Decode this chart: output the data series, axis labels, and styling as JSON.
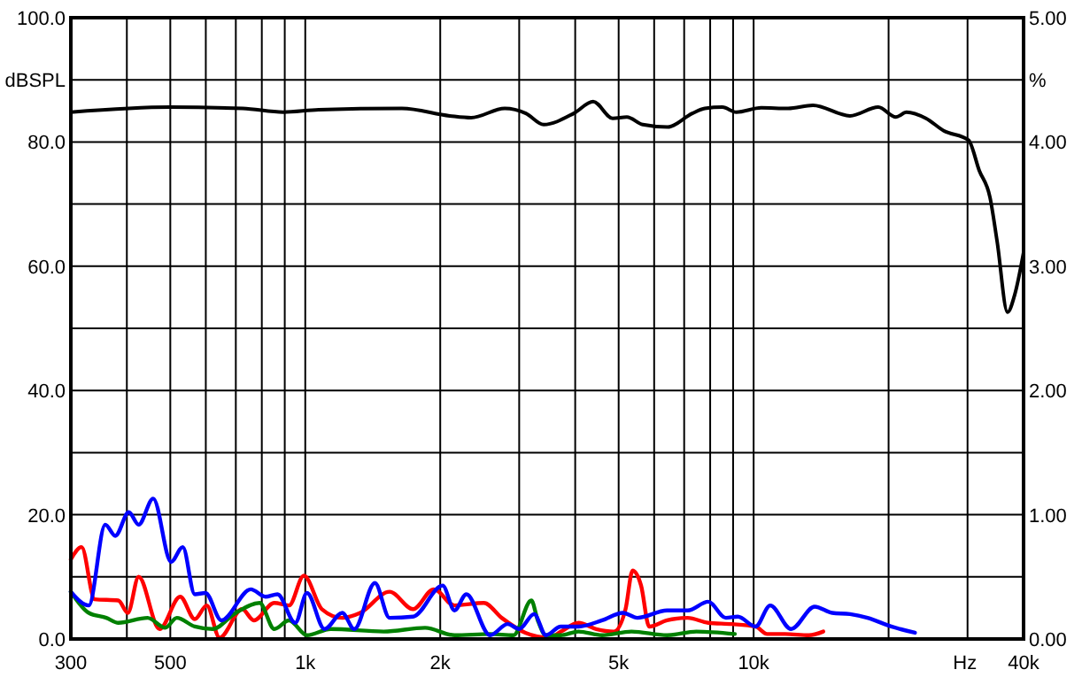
{
  "chart_data": {
    "type": "line",
    "ylabel": "dBSPL",
    "y2label": "%",
    "xlabel": "Hz",
    "log": "x",
    "grid": true,
    "marker": "none",
    "line_style": "solid",
    "xlim": [
      300,
      40000
    ],
    "xticks": [
      300,
      {
        "value": 400,
        "label": null
      },
      500,
      {
        "value": 600,
        "label": null
      },
      {
        "value": 700,
        "label": null
      },
      {
        "value": 800,
        "label": null
      },
      {
        "value": 900,
        "label": null
      },
      {
        "value": 1000,
        "label": "1k"
      },
      {
        "value": 2000,
        "label": "2k"
      },
      {
        "value": 3000,
        "label": null
      },
      {
        "value": 4000,
        "label": null
      },
      {
        "value": 5000,
        "label": "5k"
      },
      {
        "value": 6000,
        "label": null
      },
      {
        "value": 7000,
        "label": null
      },
      {
        "value": 8000,
        "label": null
      },
      {
        "value": 9000,
        "label": null
      },
      {
        "value": 10000,
        "label": "10k"
      },
      {
        "value": 20000,
        "label": null
      },
      {
        "value": 30000,
        "label": null
      },
      {
        "value": 40000,
        "label": "40k"
      }
    ],
    "ylim": [
      0,
      100
    ],
    "yticks": [
      {
        "value": 0,
        "label": "0.0"
      },
      {
        "value": 10,
        "label": null
      },
      {
        "value": 20,
        "label": "20.0"
      },
      {
        "value": 30,
        "label": null
      },
      {
        "value": 40,
        "label": "40.0"
      },
      {
        "value": 50,
        "label": null
      },
      {
        "value": 60,
        "label": "60.0"
      },
      {
        "value": 70,
        "label": null
      },
      {
        "value": 80,
        "label": "80.0"
      },
      {
        "value": 90,
        "label": null
      },
      {
        "value": 100,
        "label": "100.0"
      }
    ],
    "y2lim": [
      0,
      5
    ],
    "y2ticks": [
      {
        "value": 0,
        "label": "0.00"
      },
      {
        "value": 1,
        "label": "1.00"
      },
      {
        "value": 2,
        "label": "2.00"
      },
      {
        "value": 3,
        "label": "3.00"
      },
      {
        "value": 4,
        "label": "4.00"
      },
      {
        "value": 5,
        "label": "5.00"
      }
    ],
    "series": [
      {
        "color": "#000000",
        "x": [
          300,
          500,
          725,
          893,
          1071,
          1643,
          2100,
          2343,
          2785,
          3105,
          3402,
          3970,
          4387,
          4849,
          5214,
          5659,
          6427,
          7298,
          7782,
          8520,
          9150,
          10400,
          11940,
          13560,
          16400,
          18970,
          20770,
          21930,
          24230,
          26550,
          30150,
          31860,
          33660,
          34920,
          36840,
          38220,
          40000
        ],
        "values": [
          84.8,
          85.6,
          85.4,
          84.8,
          85.2,
          85.4,
          84.2,
          83.9,
          85.4,
          84.6,
          82.8,
          84.6,
          86.5,
          83.8,
          84.0,
          82.8,
          82.4,
          84.6,
          85.4,
          85.6,
          84.8,
          85.5,
          85.4,
          85.9,
          84.2,
          85.6,
          84.0,
          84.8,
          83.8,
          81.8,
          80.3,
          75.4,
          71.1,
          64.0,
          52.6,
          55.4,
          62.2
        ]
      },
      {
        "color": "#ff0000",
        "axis": "y2",
        "x": [
          300,
          317,
          339,
          383,
          402,
          425,
          473,
          526,
          567,
          603,
          644,
          723,
          768,
          853,
          920,
          993,
          1089,
          1209,
          1326,
          1542,
          1740,
          1935,
          2152,
          2502,
          2742,
          3096,
          3494,
          3720,
          4069,
          4456,
          4880,
          5180,
          5372,
          5610,
          5850,
          6411,
          7128,
          7920,
          8940,
          10100,
          10720,
          11750,
          13280,
          14300
        ],
        "values": [
          0.64,
          0.74,
          0.32,
          0.31,
          0.21,
          0.5,
          0.08,
          0.34,
          0.16,
          0.27,
          0.01,
          0.24,
          0.15,
          0.29,
          0.27,
          0.51,
          0.24,
          0.17,
          0.21,
          0.38,
          0.24,
          0.4,
          0.27,
          0.29,
          0.17,
          0.05,
          0.01,
          0.06,
          0.13,
          0.08,
          0.06,
          0.24,
          0.55,
          0.43,
          0.1,
          0.15,
          0.17,
          0.13,
          0.12,
          0.1,
          0.04,
          0.04,
          0.03,
          0.06
        ]
      },
      {
        "color": "#008000",
        "axis": "y2",
        "x": [
          300,
          329,
          360,
          383,
          445,
          487,
          517,
          567,
          621,
          700,
          791,
          853,
          920,
          1009,
          1139,
          1496,
          1850,
          2152,
          2583,
          2913,
          3193,
          3300,
          3441,
          3714,
          4069,
          4592,
          5340,
          6411,
          7450,
          9080
        ],
        "values": [
          0.38,
          0.21,
          0.17,
          0.13,
          0.17,
          0.09,
          0.17,
          0.1,
          0.08,
          0.21,
          0.29,
          0.08,
          0.15,
          0.03,
          0.08,
          0.06,
          0.09,
          0.03,
          0.04,
          0.03,
          0.31,
          0.15,
          0.03,
          0.03,
          0.06,
          0.03,
          0.06,
          0.03,
          0.06,
          0.04
        ]
      },
      {
        "color": "#0000ff",
        "axis": "y2",
        "x": [
          300,
          329,
          358,
          377,
          404,
          425,
          458,
          502,
          533,
          567,
          599,
          650,
          756,
          815,
          867,
          950,
          1009,
          1104,
          1209,
          1286,
          1430,
          1542,
          1740,
          2025,
          2152,
          2287,
          2583,
          2827,
          3000,
          3240,
          3441,
          3714,
          4069,
          4592,
          5110,
          5505,
          6411,
          7128,
          7920,
          8670,
          9220,
          10100,
          10890,
          12120,
          13680,
          14970,
          16410,
          17950,
          20280,
          22900
        ],
        "values": [
          0.38,
          0.27,
          0.92,
          0.83,
          1.02,
          0.92,
          1.13,
          0.62,
          0.74,
          0.36,
          0.37,
          0.15,
          0.4,
          0.34,
          0.36,
          0.13,
          0.37,
          0.08,
          0.21,
          0.08,
          0.45,
          0.17,
          0.18,
          0.43,
          0.23,
          0.36,
          0.03,
          0.12,
          0.08,
          0.2,
          0.03,
          0.1,
          0.1,
          0.15,
          0.21,
          0.17,
          0.23,
          0.23,
          0.3,
          0.17,
          0.18,
          0.1,
          0.27,
          0.08,
          0.26,
          0.21,
          0.2,
          0.17,
          0.1,
          0.05
        ]
      }
    ]
  }
}
